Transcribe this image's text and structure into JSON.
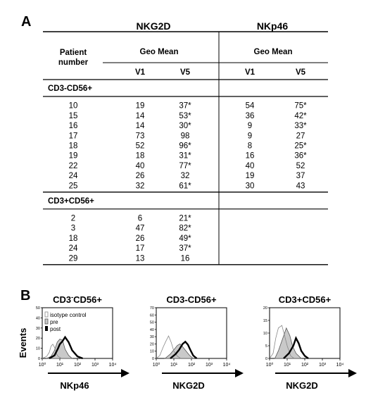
{
  "panel_a": {
    "letter": "A",
    "headers": {
      "patient": [
        "Patient",
        "number"
      ],
      "group1": "NKG2D",
      "group2": "NKp46",
      "geo_mean": "Geo Mean",
      "visits": [
        "V1",
        "V5",
        "V1",
        "V5"
      ]
    },
    "sections": [
      {
        "label": "CD3-CD56+",
        "rows": [
          [
            "10",
            "19",
            "37*",
            "54",
            "75*"
          ],
          [
            "15",
            "14",
            "53*",
            "36",
            "42*"
          ],
          [
            "16",
            "14",
            "30*",
            "9",
            "33*"
          ],
          [
            "17",
            "73",
            "98",
            "9",
            "27"
          ],
          [
            "18",
            "52",
            "96*",
            "8",
            "25*"
          ],
          [
            "19",
            "18",
            "31*",
            "16",
            "36*"
          ],
          [
            "22",
            "40",
            "77*",
            "40",
            "52"
          ],
          [
            "24",
            "26",
            "32",
            "19",
            "37"
          ],
          [
            "25",
            "32",
            "61*",
            "30",
            "43"
          ]
        ]
      },
      {
        "label": "CD3+CD56+",
        "rows": [
          [
            "2",
            "6",
            "21*",
            "",
            ""
          ],
          [
            "3",
            "47",
            "82*",
            "",
            ""
          ],
          [
            "18",
            "26",
            "49*",
            "",
            ""
          ],
          [
            "24",
            "17",
            "37*",
            "",
            ""
          ],
          [
            "29",
            "13",
            "16",
            "",
            ""
          ]
        ]
      }
    ]
  },
  "panel_b": {
    "letter": "B",
    "ylabel": "Events",
    "legend": [
      "isotype control",
      "pre",
      "post"
    ],
    "xticks": [
      "10⁰",
      "10¹",
      "10²",
      "10³",
      "10⁴"
    ],
    "panels": [
      {
        "title_pre": "CD3",
        "title_sup": "-",
        "title_post": "CD56+",
        "xlabel": "NKp46",
        "yticks": [
          "0",
          "10",
          "20",
          "30",
          "40",
          "50"
        ],
        "ymax": 50,
        "isotype": [
          [
            0,
            0
          ],
          [
            0.25,
            2
          ],
          [
            0.4,
            6
          ],
          [
            0.5,
            12
          ],
          [
            0.6,
            14
          ],
          [
            0.7,
            11
          ],
          [
            0.8,
            5
          ],
          [
            0.9,
            2
          ],
          [
            1.1,
            0
          ]
        ],
        "pre": [
          [
            0.25,
            0
          ],
          [
            0.5,
            2
          ],
          [
            0.7,
            8
          ],
          [
            0.85,
            16
          ],
          [
            1.0,
            19
          ],
          [
            1.15,
            18
          ],
          [
            1.3,
            9
          ],
          [
            1.5,
            3
          ],
          [
            1.7,
            0
          ]
        ],
        "post": [
          [
            0.4,
            0
          ],
          [
            0.7,
            3
          ],
          [
            0.9,
            10
          ],
          [
            1.0,
            14
          ],
          [
            1.15,
            17
          ],
          [
            1.3,
            21
          ],
          [
            1.5,
            16
          ],
          [
            1.7,
            8
          ],
          [
            2.0,
            2
          ],
          [
            2.3,
            0
          ]
        ]
      },
      {
        "title_pre": "CD3-CD56+",
        "title_sup": "",
        "title_post": "",
        "xlabel": "NKG2D",
        "yticks": [
          "0",
          "10",
          "20",
          "30",
          "40",
          "50",
          "60",
          "70"
        ],
        "ymax": 70,
        "isotype": [
          [
            0,
            0
          ],
          [
            0.2,
            4
          ],
          [
            0.4,
            16
          ],
          [
            0.55,
            24
          ],
          [
            0.7,
            31
          ],
          [
            0.85,
            22
          ],
          [
            1.0,
            10
          ],
          [
            1.2,
            3
          ],
          [
            1.4,
            0
          ]
        ],
        "pre": [
          [
            0.5,
            0
          ],
          [
            0.8,
            6
          ],
          [
            1.0,
            12
          ],
          [
            1.2,
            18
          ],
          [
            1.35,
            20
          ],
          [
            1.5,
            16
          ],
          [
            1.7,
            10
          ],
          [
            1.9,
            4
          ],
          [
            2.1,
            0
          ]
        ],
        "post": [
          [
            0.8,
            0
          ],
          [
            1.1,
            6
          ],
          [
            1.3,
            12
          ],
          [
            1.5,
            20
          ],
          [
            1.65,
            23
          ],
          [
            1.8,
            19
          ],
          [
            1.95,
            11
          ],
          [
            2.1,
            4
          ],
          [
            2.3,
            0
          ]
        ]
      },
      {
        "title_pre": "CD3+CD56+",
        "title_sup": "",
        "title_post": "",
        "xlabel": "NKG2D",
        "yticks": [
          "0",
          "5",
          "10",
          "15",
          "20"
        ],
        "ymax": 20,
        "isotype": [
          [
            0,
            0
          ],
          [
            0.2,
            2
          ],
          [
            0.35,
            8
          ],
          [
            0.5,
            12
          ],
          [
            0.7,
            13
          ],
          [
            0.85,
            9
          ],
          [
            1.0,
            5
          ],
          [
            1.2,
            1
          ],
          [
            1.4,
            0
          ]
        ],
        "pre": [
          [
            0.3,
            0
          ],
          [
            0.5,
            3
          ],
          [
            0.75,
            8
          ],
          [
            0.95,
            12
          ],
          [
            1.15,
            9
          ],
          [
            1.3,
            5
          ],
          [
            1.5,
            2
          ],
          [
            1.8,
            0
          ]
        ],
        "post": [
          [
            0.8,
            0
          ],
          [
            1.1,
            2
          ],
          [
            1.35,
            5
          ],
          [
            1.5,
            8
          ],
          [
            1.65,
            6
          ],
          [
            1.8,
            3
          ],
          [
            2.0,
            1
          ],
          [
            2.2,
            0
          ]
        ]
      }
    ]
  }
}
